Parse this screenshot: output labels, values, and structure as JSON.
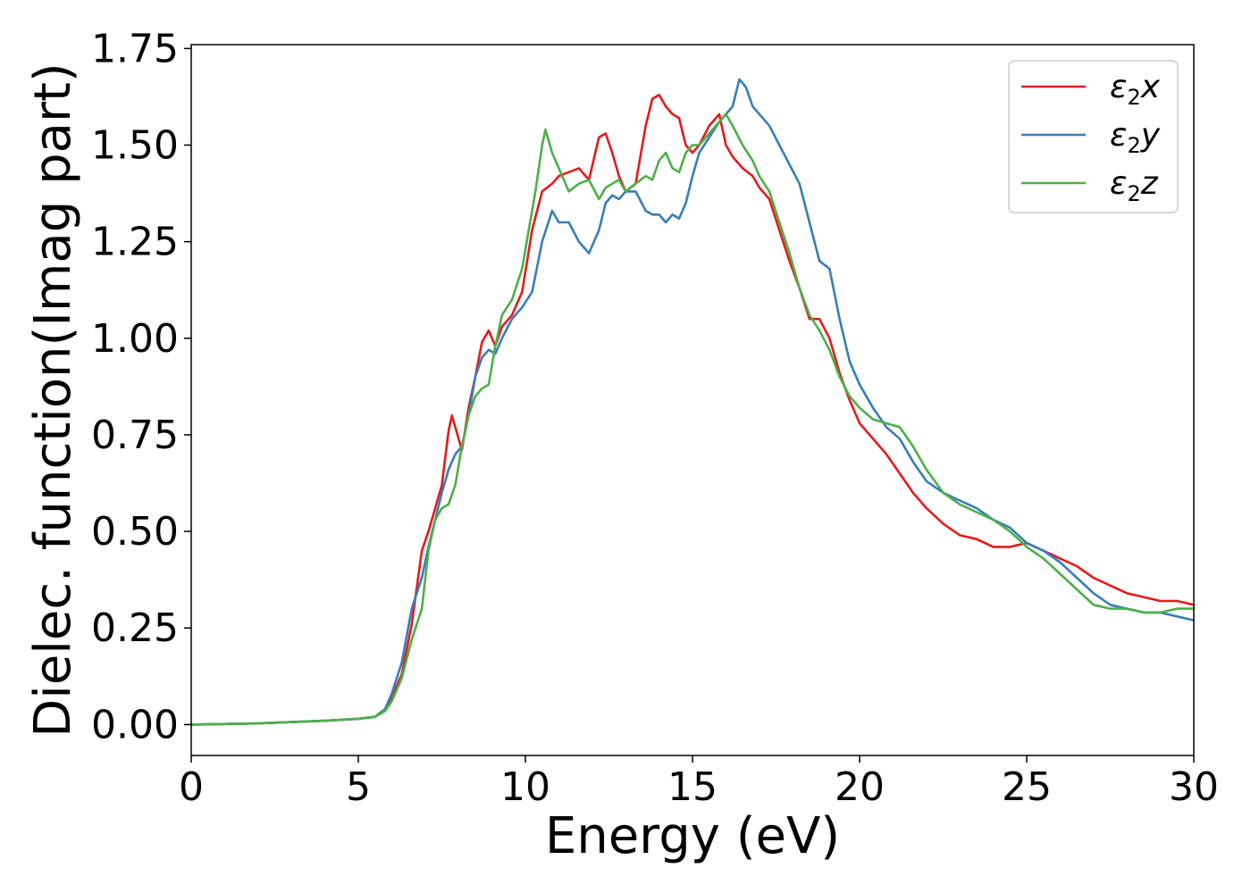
{
  "chart_data": {
    "type": "line",
    "title": "",
    "xlabel": "Energy (eV)",
    "ylabel": "Dielec. function(Imag part)",
    "xlim": [
      0,
      30
    ],
    "ylim": [
      -0.08,
      1.76
    ],
    "xticks": [
      0,
      5,
      10,
      15,
      20,
      25,
      30
    ],
    "xtick_labels": [
      "0",
      "5",
      "10",
      "15",
      "20",
      "25",
      "30"
    ],
    "yticks": [
      0.0,
      0.25,
      0.5,
      0.75,
      1.0,
      1.25,
      1.5,
      1.75
    ],
    "ytick_labels": [
      "0.00",
      "0.25",
      "0.50",
      "0.75",
      "1.00",
      "1.25",
      "1.50",
      "1.75"
    ],
    "grid": false,
    "legend_position": "top-right",
    "series": [
      {
        "name": "ε₂x",
        "legend": {
          "base": "ε",
          "sub": "2",
          "var": "x"
        },
        "color": "#e41a1c",
        "x": [
          0,
          2,
          4,
          5,
          5.5,
          5.8,
          6.0,
          6.3,
          6.6,
          6.9,
          7.1,
          7.3,
          7.5,
          7.7,
          7.8,
          7.9,
          8.1,
          8.3,
          8.5,
          8.7,
          8.9,
          9.1,
          9.3,
          9.6,
          9.9,
          10.2,
          10.5,
          10.8,
          11.0,
          11.3,
          11.6,
          11.9,
          12.2,
          12.4,
          12.6,
          12.8,
          13.0,
          13.3,
          13.6,
          13.8,
          14.0,
          14.2,
          14.4,
          14.6,
          14.8,
          15.0,
          15.2,
          15.5,
          15.8,
          16.0,
          16.2,
          16.5,
          16.8,
          17.0,
          17.3,
          17.6,
          17.9,
          18.2,
          18.5,
          18.8,
          19.1,
          19.4,
          19.7,
          20.0,
          20.4,
          20.8,
          21.2,
          21.6,
          22.0,
          22.5,
          23.0,
          23.5,
          24.0,
          24.5,
          25.0,
          25.5,
          26.0,
          26.5,
          27.0,
          27.5,
          28.0,
          28.5,
          29.0,
          29.5,
          30.0
        ],
        "y": [
          0.0,
          0.003,
          0.01,
          0.015,
          0.02,
          0.04,
          0.07,
          0.13,
          0.26,
          0.45,
          0.5,
          0.56,
          0.62,
          0.76,
          0.8,
          0.77,
          0.71,
          0.82,
          0.9,
          0.99,
          1.02,
          0.98,
          1.03,
          1.06,
          1.12,
          1.28,
          1.38,
          1.4,
          1.42,
          1.43,
          1.44,
          1.41,
          1.52,
          1.53,
          1.48,
          1.42,
          1.38,
          1.4,
          1.55,
          1.62,
          1.63,
          1.6,
          1.58,
          1.57,
          1.5,
          1.48,
          1.5,
          1.55,
          1.58,
          1.5,
          1.47,
          1.44,
          1.42,
          1.39,
          1.36,
          1.28,
          1.2,
          1.13,
          1.05,
          1.05,
          1.0,
          0.91,
          0.84,
          0.78,
          0.74,
          0.7,
          0.65,
          0.6,
          0.56,
          0.52,
          0.49,
          0.48,
          0.46,
          0.46,
          0.47,
          0.45,
          0.43,
          0.41,
          0.38,
          0.36,
          0.34,
          0.33,
          0.32,
          0.32,
          0.31
        ]
      },
      {
        "name": "ε₂y",
        "legend": {
          "base": "ε",
          "sub": "2",
          "var": "y"
        },
        "color": "#377eb8",
        "x": [
          0,
          2,
          4,
          5,
          5.5,
          5.8,
          6.0,
          6.3,
          6.6,
          6.9,
          7.1,
          7.3,
          7.5,
          7.7,
          7.9,
          8.1,
          8.3,
          8.5,
          8.7,
          8.9,
          9.1,
          9.3,
          9.6,
          9.9,
          10.2,
          10.5,
          10.8,
          11.0,
          11.3,
          11.6,
          11.9,
          12.2,
          12.4,
          12.6,
          12.8,
          13.0,
          13.3,
          13.6,
          13.8,
          14.0,
          14.2,
          14.4,
          14.6,
          14.8,
          15.0,
          15.2,
          15.5,
          15.8,
          16.0,
          16.2,
          16.4,
          16.6,
          16.8,
          17.0,
          17.3,
          17.6,
          17.9,
          18.2,
          18.5,
          18.8,
          19.1,
          19.4,
          19.7,
          20.0,
          20.4,
          20.8,
          21.2,
          21.6,
          22.0,
          22.5,
          23.0,
          23.5,
          24.0,
          24.5,
          25.0,
          25.5,
          26.0,
          26.5,
          27.0,
          27.5,
          28.0,
          28.5,
          29.0,
          29.5,
          30.0
        ],
        "y": [
          0.0,
          0.003,
          0.01,
          0.015,
          0.02,
          0.04,
          0.08,
          0.16,
          0.3,
          0.38,
          0.46,
          0.53,
          0.6,
          0.66,
          0.7,
          0.72,
          0.8,
          0.9,
          0.95,
          0.97,
          0.96,
          1.0,
          1.05,
          1.08,
          1.12,
          1.25,
          1.33,
          1.3,
          1.3,
          1.25,
          1.22,
          1.28,
          1.35,
          1.37,
          1.36,
          1.38,
          1.38,
          1.33,
          1.32,
          1.32,
          1.3,
          1.32,
          1.31,
          1.35,
          1.42,
          1.48,
          1.52,
          1.56,
          1.58,
          1.6,
          1.67,
          1.65,
          1.6,
          1.58,
          1.55,
          1.5,
          1.45,
          1.4,
          1.3,
          1.2,
          1.18,
          1.05,
          0.94,
          0.88,
          0.82,
          0.77,
          0.74,
          0.68,
          0.63,
          0.6,
          0.58,
          0.56,
          0.53,
          0.51,
          0.47,
          0.45,
          0.42,
          0.38,
          0.34,
          0.31,
          0.3,
          0.29,
          0.29,
          0.28,
          0.27
        ]
      },
      {
        "name": "ε₂z",
        "legend": {
          "base": "ε",
          "sub": "2",
          "var": "z"
        },
        "color": "#4daf4a",
        "x": [
          0,
          2,
          4,
          5,
          5.5,
          5.8,
          6.0,
          6.3,
          6.6,
          6.9,
          7.1,
          7.3,
          7.5,
          7.7,
          7.9,
          8.1,
          8.3,
          8.5,
          8.7,
          8.9,
          9.1,
          9.3,
          9.6,
          9.9,
          10.1,
          10.3,
          10.5,
          10.6,
          10.8,
          11.0,
          11.3,
          11.6,
          11.9,
          12.2,
          12.4,
          12.6,
          12.8,
          13.0,
          13.3,
          13.6,
          13.8,
          14.0,
          14.2,
          14.4,
          14.6,
          14.8,
          15.0,
          15.2,
          15.5,
          15.8,
          16.0,
          16.2,
          16.5,
          16.8,
          17.0,
          17.3,
          17.6,
          17.9,
          18.2,
          18.5,
          18.8,
          19.1,
          19.4,
          19.7,
          20.0,
          20.4,
          20.8,
          21.2,
          21.6,
          22.0,
          22.5,
          23.0,
          23.5,
          24.0,
          24.5,
          25.0,
          25.5,
          26.0,
          26.5,
          27.0,
          27.5,
          28.0,
          28.5,
          29.0,
          29.5,
          30.0
        ],
        "y": [
          0.0,
          0.003,
          0.01,
          0.015,
          0.02,
          0.035,
          0.06,
          0.12,
          0.22,
          0.3,
          0.45,
          0.53,
          0.56,
          0.57,
          0.62,
          0.72,
          0.8,
          0.85,
          0.87,
          0.88,
          0.98,
          1.06,
          1.1,
          1.18,
          1.28,
          1.38,
          1.5,
          1.54,
          1.48,
          1.44,
          1.38,
          1.4,
          1.41,
          1.36,
          1.39,
          1.4,
          1.41,
          1.38,
          1.4,
          1.42,
          1.41,
          1.46,
          1.48,
          1.44,
          1.43,
          1.48,
          1.5,
          1.5,
          1.53,
          1.56,
          1.58,
          1.55,
          1.5,
          1.46,
          1.42,
          1.38,
          1.3,
          1.22,
          1.13,
          1.06,
          1.02,
          0.97,
          0.9,
          0.85,
          0.82,
          0.79,
          0.78,
          0.77,
          0.72,
          0.66,
          0.6,
          0.57,
          0.55,
          0.53,
          0.5,
          0.46,
          0.43,
          0.39,
          0.35,
          0.31,
          0.3,
          0.3,
          0.29,
          0.29,
          0.3,
          0.3
        ]
      }
    ]
  }
}
